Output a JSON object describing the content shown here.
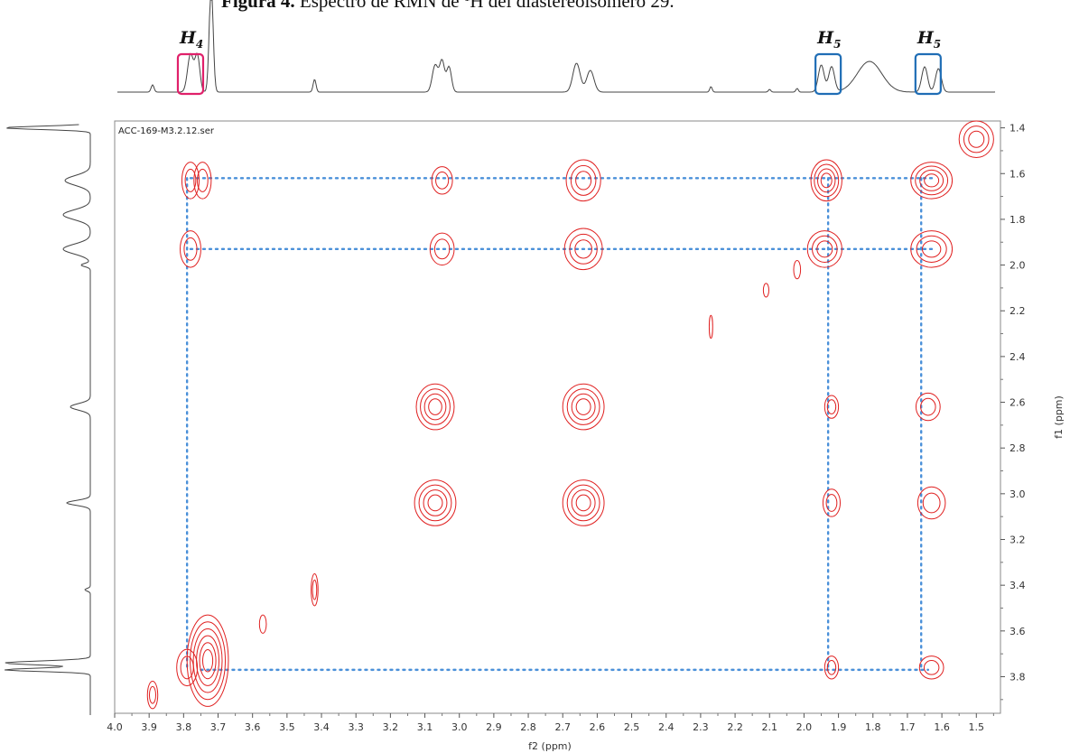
{
  "caption": {
    "prefix": "Figura 4.",
    "text": " Espectro de RMN de ",
    "sup": "1",
    "suffix": "H del diastereoisómero 29."
  },
  "spectrum_name": "ACC-169-M3.2.12.ser",
  "peak_labels": [
    {
      "name": "H",
      "sub": "4",
      "ppm": 3.78,
      "color": "#e0206a"
    },
    {
      "name": "H",
      "sub": "5",
      "ppm": 1.93,
      "color": "#1f6db5"
    },
    {
      "name": "H",
      "sub": "5",
      "ppm": 1.64,
      "color": "#1f6db5"
    }
  ],
  "colors": {
    "contour": "#e02020",
    "guide": "#4a90d9",
    "trace": "#444444",
    "frame": "#888888"
  },
  "chart_data": {
    "type": "heatmap",
    "subtype": "2D COSY contour plot",
    "xlabel": "f2 (ppm)",
    "ylabel": "f1 (ppm)",
    "xlim": [
      4.0,
      1.43
    ],
    "ylim": [
      1.37,
      3.96
    ],
    "x_ticks": [
      "4.0",
      "3.9",
      "3.8",
      "3.7",
      "3.6",
      "3.5",
      "3.4",
      "3.3",
      "3.2",
      "3.1",
      "3.0",
      "2.9",
      "2.8",
      "2.7",
      "2.6",
      "2.5",
      "2.4",
      "2.3",
      "2.2",
      "2.1",
      "2.0",
      "1.9",
      "1.8",
      "1.7",
      "1.6",
      "1.5"
    ],
    "y_ticks": [
      "1.4",
      "1.6",
      "1.8",
      "2.0",
      "2.2",
      "2.4",
      "2.6",
      "2.8",
      "3.0",
      "3.2",
      "3.4",
      "3.6",
      "3.8"
    ],
    "cross_peaks": [
      {
        "x": 3.78,
        "y": 1.63,
        "rx": 0.025,
        "ry": 0.08,
        "rings": 2
      },
      {
        "x": 3.745,
        "y": 1.63,
        "rx": 0.025,
        "ry": 0.08,
        "rings": 2
      },
      {
        "x": 3.78,
        "y": 1.93,
        "rx": 0.03,
        "ry": 0.08,
        "rings": 2
      },
      {
        "x": 3.05,
        "y": 1.63,
        "rx": 0.03,
        "ry": 0.06,
        "rings": 2
      },
      {
        "x": 3.05,
        "y": 1.93,
        "rx": 0.035,
        "ry": 0.07,
        "rings": 2
      },
      {
        "x": 2.64,
        "y": 1.63,
        "rx": 0.05,
        "ry": 0.09,
        "rings": 3
      },
      {
        "x": 2.64,
        "y": 1.93,
        "rx": 0.055,
        "ry": 0.09,
        "rings": 3
      },
      {
        "x": 1.935,
        "y": 1.63,
        "rx": 0.045,
        "ry": 0.09,
        "rings": 4
      },
      {
        "x": 1.94,
        "y": 1.93,
        "rx": 0.05,
        "ry": 0.08,
        "rings": 3
      },
      {
        "x": 1.63,
        "y": 1.63,
        "rx": 0.06,
        "ry": 0.08,
        "rings": 4
      },
      {
        "x": 1.63,
        "y": 1.93,
        "rx": 0.06,
        "ry": 0.08,
        "rings": 3
      },
      {
        "x": 3.07,
        "y": 2.62,
        "rx": 0.055,
        "ry": 0.1,
        "rings": 4
      },
      {
        "x": 2.64,
        "y": 2.62,
        "rx": 0.06,
        "ry": 0.1,
        "rings": 4
      },
      {
        "x": 1.92,
        "y": 2.62,
        "rx": 0.02,
        "ry": 0.05,
        "rings": 2
      },
      {
        "x": 1.64,
        "y": 2.62,
        "rx": 0.035,
        "ry": 0.06,
        "rings": 2
      },
      {
        "x": 3.07,
        "y": 3.04,
        "rx": 0.06,
        "ry": 0.1,
        "rings": 4
      },
      {
        "x": 2.64,
        "y": 3.04,
        "rx": 0.06,
        "ry": 0.1,
        "rings": 4
      },
      {
        "x": 1.92,
        "y": 3.04,
        "rx": 0.025,
        "ry": 0.06,
        "rings": 2
      },
      {
        "x": 1.63,
        "y": 3.04,
        "rx": 0.04,
        "ry": 0.07,
        "rings": 2
      },
      {
        "x": 3.73,
        "y": 3.73,
        "rx": 0.06,
        "ry": 0.2,
        "rings": 6
      },
      {
        "x": 3.79,
        "y": 3.76,
        "rx": 0.03,
        "ry": 0.08,
        "rings": 2
      },
      {
        "x": 1.92,
        "y": 3.76,
        "rx": 0.02,
        "ry": 0.05,
        "rings": 2
      },
      {
        "x": 1.63,
        "y": 3.76,
        "rx": 0.035,
        "ry": 0.05,
        "rings": 2
      },
      {
        "x": 3.89,
        "y": 3.88,
        "rx": 0.015,
        "ry": 0.06,
        "rings": 2
      },
      {
        "x": 3.57,
        "y": 3.57,
        "rx": 0.01,
        "ry": 0.04,
        "rings": 1
      },
      {
        "x": 3.42,
        "y": 3.42,
        "rx": 0.01,
        "ry": 0.07,
        "rings": 2
      },
      {
        "x": 2.27,
        "y": 2.27,
        "rx": 0.005,
        "ry": 0.05,
        "rings": 1
      },
      {
        "x": 2.11,
        "y": 2.11,
        "rx": 0.008,
        "ry": 0.03,
        "rings": 1
      },
      {
        "x": 2.02,
        "y": 2.02,
        "rx": 0.01,
        "ry": 0.04,
        "rings": 1
      },
      {
        "x": 1.5,
        "y": 1.45,
        "rx": 0.05,
        "ry": 0.08,
        "rings": 3
      }
    ],
    "guides": [
      {
        "from": [
          3.78,
          1.62
        ],
        "to": [
          1.62,
          1.62
        ]
      },
      {
        "from": [
          3.78,
          1.93
        ],
        "to": [
          1.62,
          1.93
        ]
      },
      {
        "from": [
          3.75,
          3.77
        ],
        "to": [
          1.64,
          3.77
        ]
      },
      {
        "from": [
          3.79,
          1.62
        ],
        "to": [
          3.79,
          3.77
        ]
      },
      {
        "from": [
          1.93,
          1.62
        ],
        "to": [
          1.93,
          3.77
        ]
      },
      {
        "from": [
          1.66,
          1.62
        ],
        "to": [
          1.66,
          3.77
        ]
      }
    ],
    "grid": false,
    "legend": "none"
  }
}
